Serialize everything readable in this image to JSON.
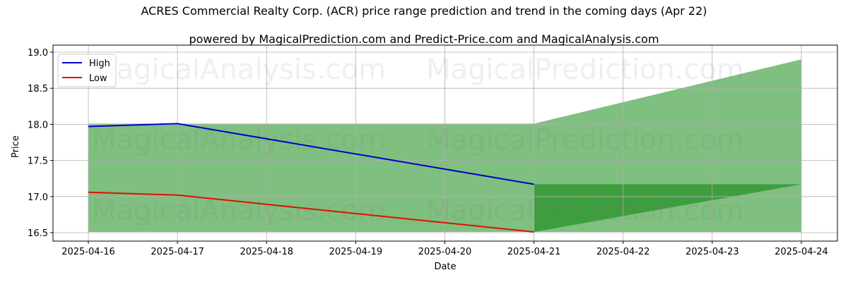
{
  "chart_data": {
    "type": "area",
    "title": "ACRES Commercial Realty Corp. (ACR) price range prediction and trend in the coming days (Apr 22)",
    "subtitle": "powered by MagicalPrediction.com and Predict-Price.com and MagicalAnalysis.com",
    "xlabel": "Date",
    "ylabel": "Price",
    "ylim": [
      16.4,
      19.05
    ],
    "grid": true,
    "legend_position": "upper left",
    "x": [
      "2025-04-16",
      "2025-04-17",
      "2025-04-18",
      "2025-04-19",
      "2025-04-20",
      "2025-04-21",
      "2025-04-22",
      "2025-04-23",
      "2025-04-24"
    ],
    "y_ticks": [
      "16.5",
      "17.0",
      "17.5",
      "18.0",
      "18.5",
      "19.0"
    ],
    "series": [
      {
        "name": "High",
        "color": "#0000cc",
        "x": [
          "2025-04-16",
          "2025-04-17",
          "2025-04-21"
        ],
        "values": [
          17.97,
          18.01,
          17.17
        ]
      },
      {
        "name": "Low",
        "color": "#dd1100",
        "x": [
          "2025-04-16",
          "2025-04-17",
          "2025-04-21"
        ],
        "values": [
          17.06,
          17.02,
          16.51
        ]
      }
    ],
    "bands": [
      {
        "name": "historical range",
        "x": [
          "2025-04-16",
          "2025-04-21"
        ],
        "upper": [
          18.01,
          18.01
        ],
        "lower": [
          16.51,
          16.51
        ],
        "color": "#7fbf7f"
      },
      {
        "name": "prediction range",
        "x": [
          "2025-04-21",
          "2025-04-24"
        ],
        "upper": [
          18.01,
          18.9
        ],
        "lower": [
          16.51,
          16.51
        ],
        "color": "#7fbf7f"
      },
      {
        "name": "trend range",
        "x": [
          "2025-04-21",
          "2025-04-24"
        ],
        "upper": [
          17.17,
          17.17
        ],
        "lower": [
          16.51,
          17.17
        ],
        "color": "#3d9e3d"
      }
    ],
    "watermarks": [
      "MagicalAnalysis.com",
      "MagicalPrediction.com"
    ]
  },
  "legend": {
    "high": "High",
    "low": "Low"
  }
}
